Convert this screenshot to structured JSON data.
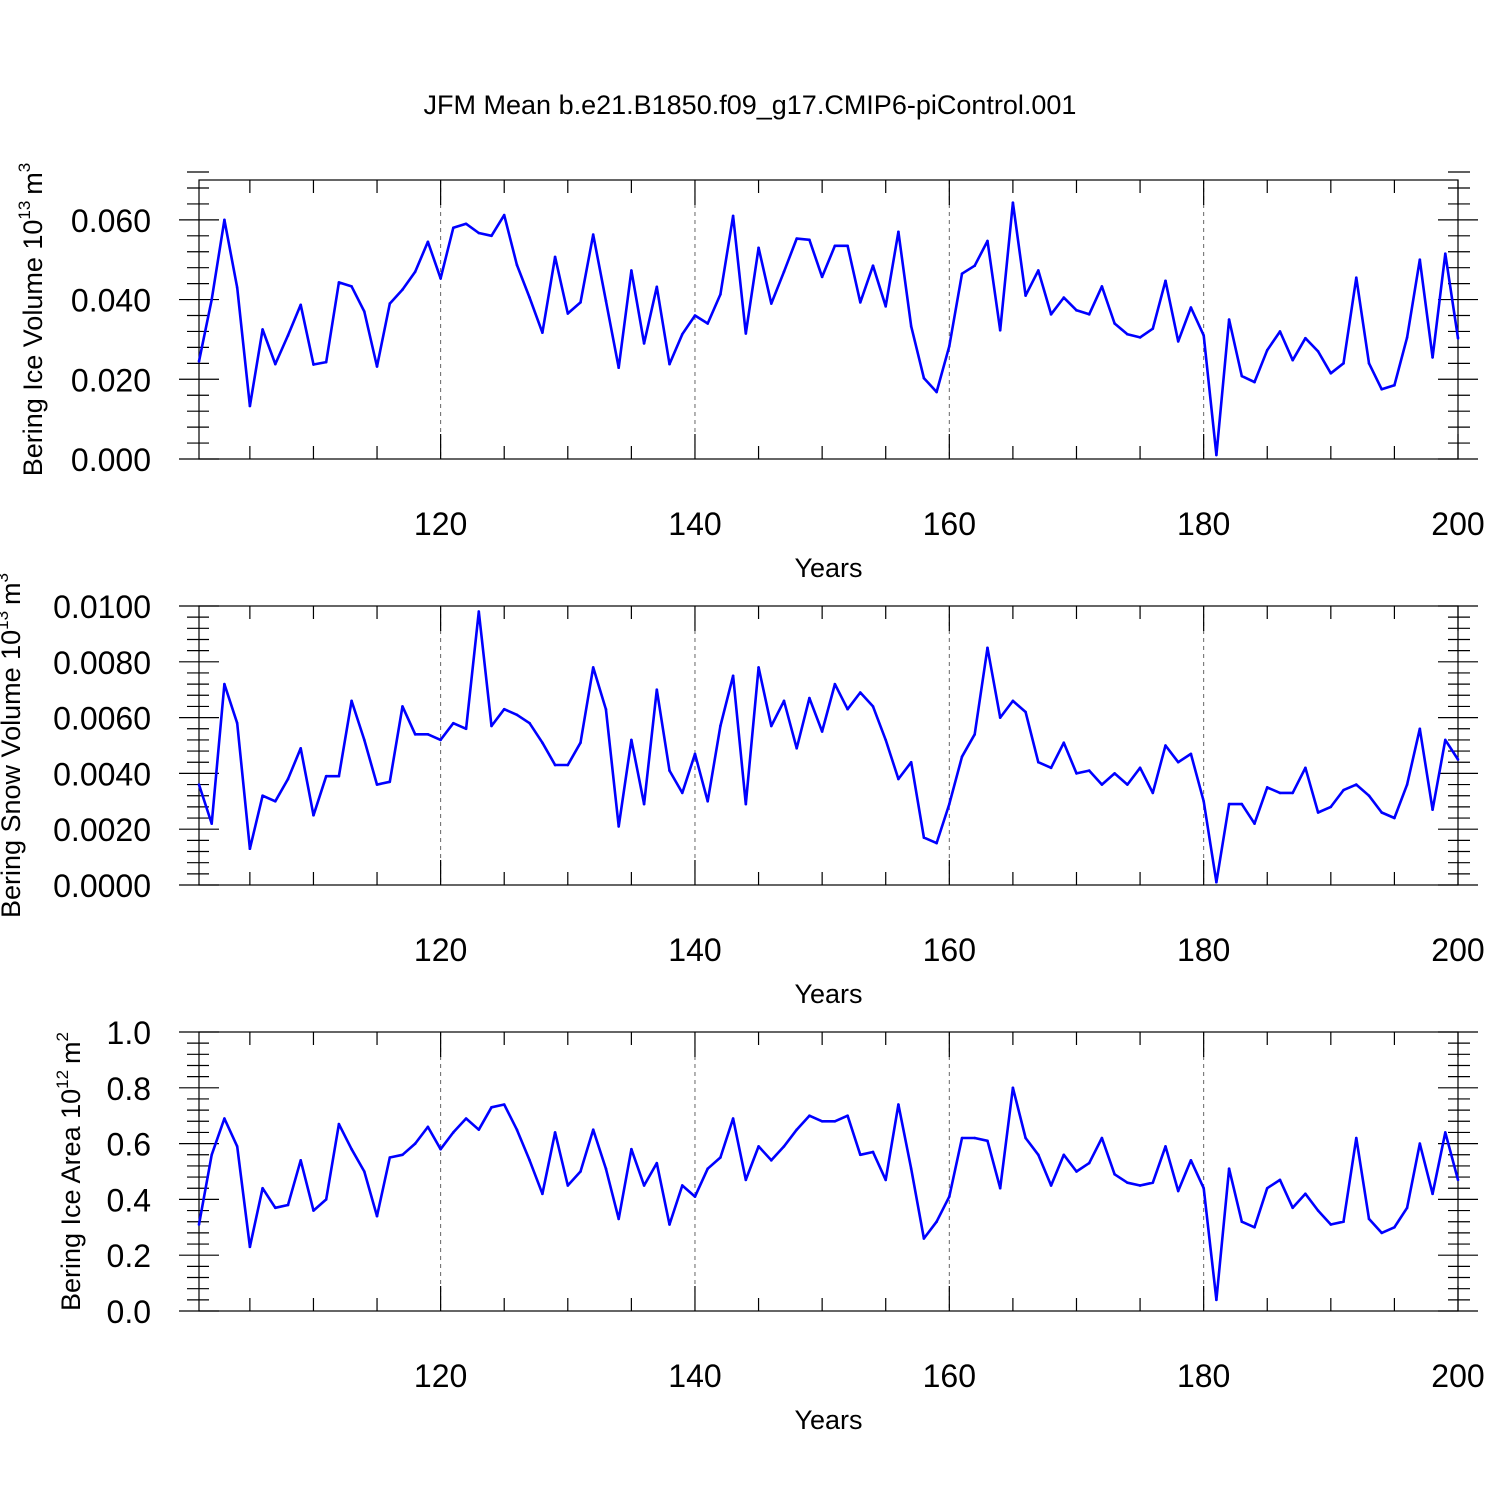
{
  "title": "JFM Mean b.e21.B1850.f09_g17.CMIP6-piControl.001",
  "colors": {
    "series": "#0000ff",
    "axis": "#000000",
    "gridline": "#666666"
  },
  "chart_data": [
    {
      "type": "line",
      "xlabel": "Years",
      "ylabel": "Bering Ice Volume 10",
      "ylabel_exponent": "13",
      "ylabel_unit": "m",
      "ylabel_unit_exponent": "3",
      "xlim": [
        101,
        200
      ],
      "ylim": [
        0,
        0.07
      ],
      "xticks": [
        120,
        140,
        160,
        180,
        200
      ],
      "xtick_labels": [
        "120",
        "140",
        "160",
        "180",
        "200"
      ],
      "yticks": [
        0,
        0.02,
        0.04,
        0.06
      ],
      "ytick_labels": [
        "0.000",
        "0.020",
        "0.040",
        "0.060"
      ],
      "dashed_vlines": [
        120,
        140,
        160,
        180
      ],
      "x_start": 101,
      "values": [
        0.0245,
        0.04,
        0.06,
        0.043,
        0.0133,
        0.0325,
        0.0238,
        0.031,
        0.0387,
        0.0237,
        0.0243,
        0.0443,
        0.0433,
        0.037,
        0.0232,
        0.039,
        0.0425,
        0.047,
        0.0545,
        0.0453,
        0.058,
        0.059,
        0.0567,
        0.056,
        0.0612,
        0.0487,
        0.0405,
        0.0317,
        0.0507,
        0.0365,
        0.0393,
        0.0563,
        0.0397,
        0.0229,
        0.0473,
        0.029,
        0.0432,
        0.0238,
        0.0313,
        0.036,
        0.034,
        0.0413,
        0.061,
        0.0315,
        0.053,
        0.039,
        0.047,
        0.0553,
        0.055,
        0.0457,
        0.0535,
        0.0535,
        0.0393,
        0.0485,
        0.0383,
        0.057,
        0.0333,
        0.0203,
        0.0168,
        0.0283,
        0.0465,
        0.0485,
        0.0547,
        0.0323,
        0.0643,
        0.041,
        0.0473,
        0.0363,
        0.0405,
        0.0373,
        0.0363,
        0.0433,
        0.034,
        0.0313,
        0.0305,
        0.0327,
        0.0447,
        0.0295,
        0.038,
        0.031,
        0.001,
        0.035,
        0.0208,
        0.0193,
        0.0273,
        0.032,
        0.0248,
        0.0303,
        0.027,
        0.0215,
        0.024,
        0.0455,
        0.024,
        0.0175,
        0.0185,
        0.0305,
        0.05,
        0.0255,
        0.0515,
        0.0303
      ]
    },
    {
      "type": "line",
      "xlabel": "Years",
      "ylabel": "Bering Snow Volume 10",
      "ylabel_exponent": "13",
      "ylabel_unit": "m",
      "ylabel_unit_exponent": "3",
      "xlim": [
        101,
        200
      ],
      "ylim": [
        0,
        0.01
      ],
      "xticks": [
        120,
        140,
        160,
        180,
        200
      ],
      "xtick_labels": [
        "120",
        "140",
        "160",
        "180",
        "200"
      ],
      "yticks": [
        0,
        0.002,
        0.004,
        0.006,
        0.008,
        0.01
      ],
      "ytick_labels": [
        "0.0000",
        "0.0020",
        "0.0040",
        "0.0060",
        "0.0080",
        "0.0100"
      ],
      "dashed_vlines": [
        120,
        140,
        160,
        180
      ],
      "x_start": 101,
      "values": [
        0.0036,
        0.0022,
        0.0072,
        0.0058,
        0.0013,
        0.0032,
        0.003,
        0.0038,
        0.0049,
        0.0025,
        0.0039,
        0.0039,
        0.0066,
        0.0052,
        0.0036,
        0.0037,
        0.0064,
        0.0054,
        0.0054,
        0.0052,
        0.0058,
        0.0056,
        0.0098,
        0.0057,
        0.0063,
        0.0061,
        0.0058,
        0.0051,
        0.0043,
        0.0043,
        0.0051,
        0.0078,
        0.0063,
        0.0021,
        0.0052,
        0.0029,
        0.007,
        0.0041,
        0.0033,
        0.0047,
        0.003,
        0.0057,
        0.0075,
        0.0029,
        0.0078,
        0.0057,
        0.0066,
        0.0049,
        0.0067,
        0.0055,
        0.0072,
        0.0063,
        0.0069,
        0.0064,
        0.0052,
        0.0038,
        0.0044,
        0.0017,
        0.0015,
        0.0029,
        0.0046,
        0.0054,
        0.0085,
        0.006,
        0.0066,
        0.0062,
        0.0044,
        0.0042,
        0.0051,
        0.004,
        0.0041,
        0.0036,
        0.004,
        0.0036,
        0.0042,
        0.0033,
        0.005,
        0.0044,
        0.0047,
        0.003,
        0.0001,
        0.0029,
        0.0029,
        0.0022,
        0.0035,
        0.0033,
        0.0033,
        0.0042,
        0.0026,
        0.0028,
        0.0034,
        0.0036,
        0.0032,
        0.0026,
        0.0024,
        0.0036,
        0.0056,
        0.0027,
        0.0052,
        0.0045
      ]
    },
    {
      "type": "line",
      "xlabel": "Years",
      "ylabel": "Bering Ice Area 10",
      "ylabel_exponent": "12",
      "ylabel_unit": "m",
      "ylabel_unit_exponent": "2",
      "xlim": [
        101,
        200
      ],
      "ylim": [
        0,
        1.0
      ],
      "xticks": [
        120,
        140,
        160,
        180,
        200
      ],
      "xtick_labels": [
        "120",
        "140",
        "160",
        "180",
        "200"
      ],
      "yticks": [
        0,
        0.2,
        0.4,
        0.6,
        0.8,
        1.0
      ],
      "ytick_labels": [
        "0.0",
        "0.2",
        "0.4",
        "0.6",
        "0.8",
        "1.0"
      ],
      "dashed_vlines": [
        120,
        140,
        160,
        180
      ],
      "x_start": 101,
      "values": [
        0.31,
        0.56,
        0.69,
        0.59,
        0.23,
        0.44,
        0.37,
        0.38,
        0.54,
        0.36,
        0.4,
        0.67,
        0.58,
        0.5,
        0.34,
        0.55,
        0.56,
        0.6,
        0.66,
        0.58,
        0.64,
        0.69,
        0.65,
        0.73,
        0.74,
        0.65,
        0.54,
        0.42,
        0.64,
        0.45,
        0.5,
        0.65,
        0.51,
        0.33,
        0.58,
        0.45,
        0.53,
        0.31,
        0.45,
        0.41,
        0.51,
        0.55,
        0.69,
        0.47,
        0.59,
        0.54,
        0.59,
        0.65,
        0.7,
        0.68,
        0.68,
        0.7,
        0.56,
        0.57,
        0.47,
        0.74,
        0.51,
        0.26,
        0.32,
        0.41,
        0.62,
        0.62,
        0.61,
        0.44,
        0.8,
        0.62,
        0.56,
        0.45,
        0.56,
        0.5,
        0.53,
        0.62,
        0.49,
        0.46,
        0.45,
        0.46,
        0.59,
        0.43,
        0.54,
        0.44,
        0.04,
        0.51,
        0.32,
        0.3,
        0.44,
        0.47,
        0.37,
        0.42,
        0.36,
        0.31,
        0.32,
        0.62,
        0.33,
        0.28,
        0.3,
        0.37,
        0.6,
        0.42,
        0.64,
        0.47
      ]
    }
  ]
}
